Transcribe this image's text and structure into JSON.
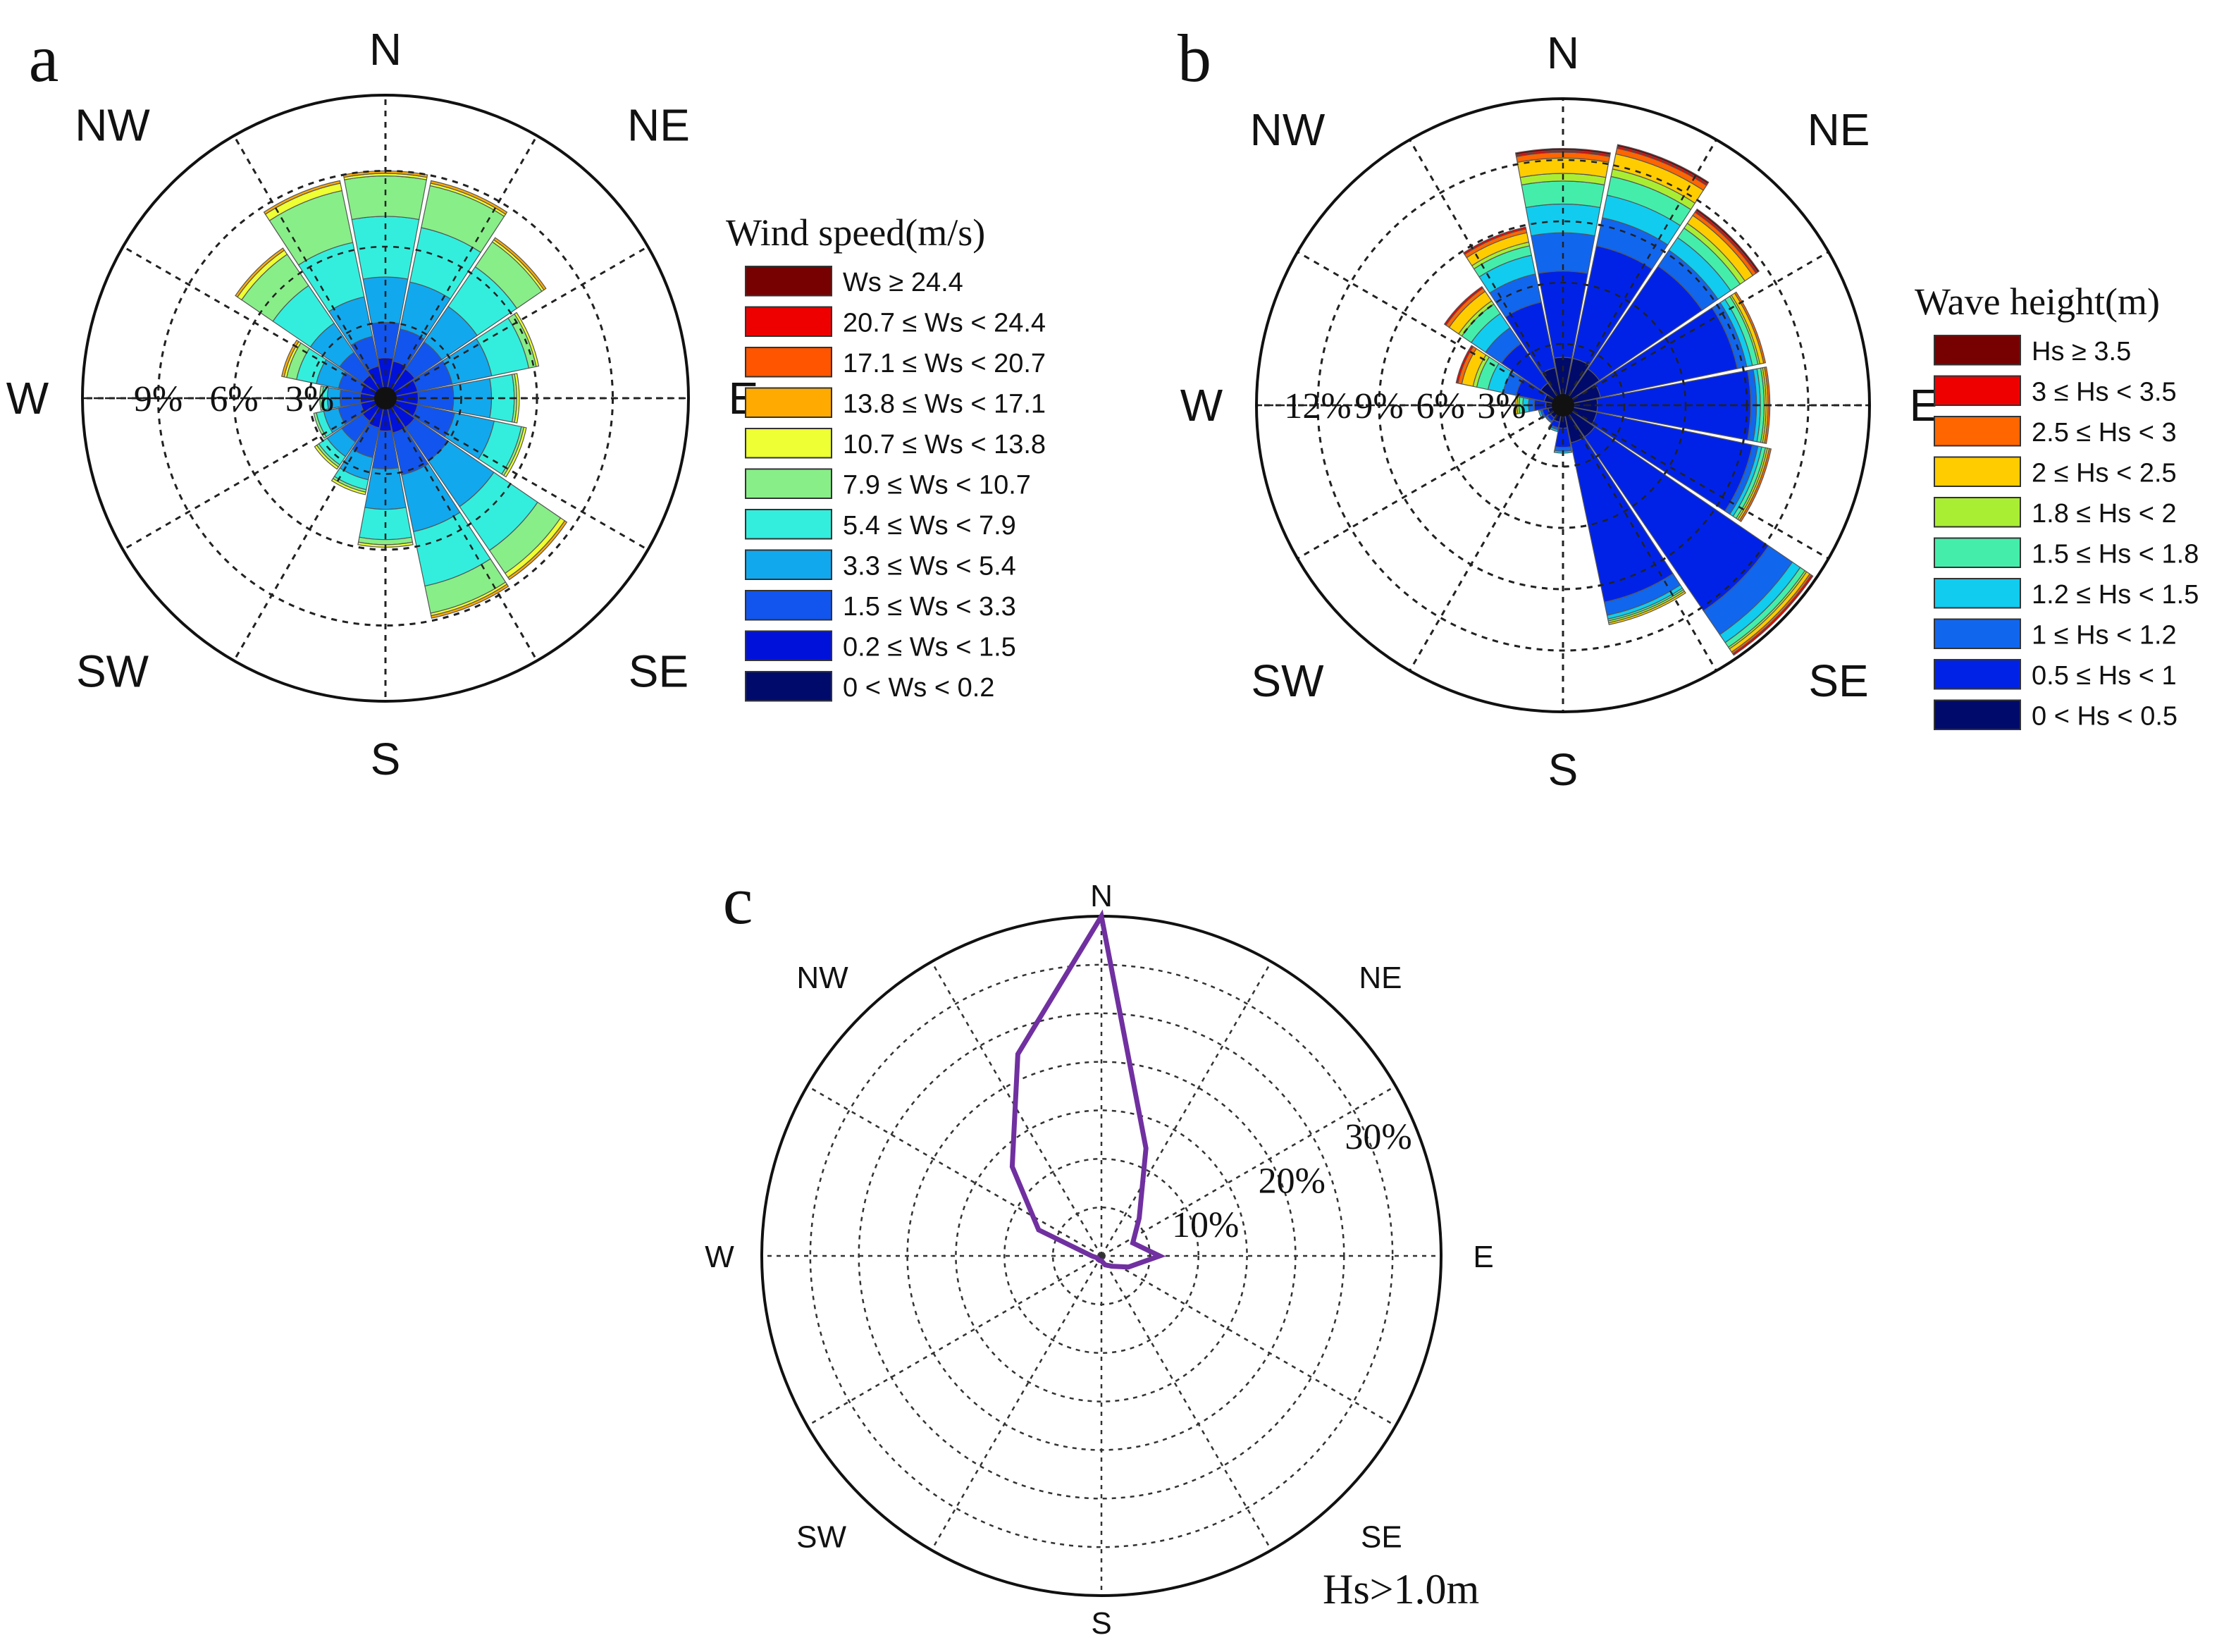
{
  "chart_data": [
    {
      "panel": "a",
      "type": "wind-rose",
      "legend_title": "Wind speed(m/s)",
      "legend_placement": "right",
      "compass": [
        "N",
        "NE",
        "E",
        "SE",
        "S",
        "SW",
        "W",
        "NW"
      ],
      "radial_ticks": [
        "3%",
        "6%",
        "9%"
      ],
      "radial_max": 12,
      "directions": [
        "N",
        "NNE",
        "NE",
        "ENE",
        "E",
        "ESE",
        "SE",
        "SSE",
        "S",
        "SSW",
        "SW",
        "WSW",
        "W",
        "WNW",
        "NW",
        "NNW"
      ],
      "bins": [
        {
          "label": "0 < Ws < 0.2",
          "color": "#000a6b"
        },
        {
          "label": "0.2 ≤ Ws < 1.5",
          "color": "#0011d9"
        },
        {
          "label": "1.5 ≤ Ws < 3.3",
          "color": "#1155ee"
        },
        {
          "label": "3.3 ≤ Ws < 5.4",
          "color": "#11a8ee"
        },
        {
          "label": "5.4 ≤ Ws < 7.9",
          "color": "#33eedd"
        },
        {
          "label": "7.9 ≤ Ws < 10.7",
          "color": "#88ee88"
        },
        {
          "label": "10.7 ≤ Ws < 13.8",
          "color": "#eeff33"
        },
        {
          "label": "13.8 ≤ Ws < 17.1",
          "color": "#ffaa00"
        },
        {
          "label": "17.1 ≤ Ws < 20.7",
          "color": "#ff5500"
        },
        {
          "label": "20.7 ≤ Ws < 24.4",
          "color": "#ee0000"
        },
        {
          "label": "Ws ≥ 24.4",
          "color": "#770000"
        }
      ],
      "frequencies": [
        [
          0.2,
          1.4,
          1.4,
          1.8,
          2.4,
          1.6,
          0.1,
          0.1,
          0,
          0,
          0
        ],
        [
          0.2,
          1.3,
          1.3,
          1.9,
          2.2,
          1.7,
          0.1,
          0.1,
          0,
          0,
          0
        ],
        [
          0.2,
          1.2,
          1.3,
          1.7,
          1.9,
          1.2,
          0.1,
          0.1,
          0,
          0,
          0
        ],
        [
          0.2,
          1.1,
          1.4,
          1.6,
          1.5,
          0.3,
          0.1,
          0,
          0,
          0,
          0
        ],
        [
          0.2,
          1.1,
          1.4,
          1.5,
          0.9,
          0.1,
          0.1,
          0,
          0,
          0,
          0
        ],
        [
          0.2,
          1.1,
          1.5,
          1.6,
          1.1,
          0.1,
          0.1,
          0,
          0,
          0,
          0
        ],
        [
          0.2,
          1.2,
          1.6,
          2.2,
          2.1,
          1.1,
          0.2,
          0.1,
          0,
          0,
          0
        ],
        [
          0.2,
          1.2,
          1.7,
          2.3,
          2.2,
          1.1,
          0.1,
          0.1,
          0,
          0,
          0
        ],
        [
          0.2,
          1.1,
          1.5,
          1.6,
          1.2,
          0.2,
          0.1,
          0,
          0,
          0,
          0
        ],
        [
          0.2,
          1.0,
          1.2,
          0.9,
          0.4,
          0.1,
          0.1,
          0,
          0,
          0,
          0
        ],
        [
          0.2,
          0.9,
          1.0,
          0.7,
          0.4,
          0.1,
          0.1,
          0,
          0,
          0,
          0
        ],
        [
          0.2,
          0.8,
          0.9,
          0.6,
          0.3,
          0.1,
          0,
          0,
          0,
          0,
          0
        ],
        [
          0.2,
          0.8,
          0.8,
          0.5,
          0.2,
          0.1,
          0,
          0,
          0,
          0,
          0
        ],
        [
          0.2,
          0.8,
          0.9,
          0.9,
          0.8,
          0.4,
          0.1,
          0.1,
          0,
          0,
          0
        ],
        [
          0.2,
          0.9,
          1.1,
          1.4,
          1.8,
          1.5,
          0.2,
          0.1,
          0,
          0,
          0
        ],
        [
          0.2,
          1.1,
          1.2,
          1.6,
          2.2,
          2.1,
          0.3,
          0.1,
          0,
          0,
          0
        ]
      ]
    },
    {
      "panel": "b",
      "type": "wave-rose",
      "legend_title": "Wave height(m)",
      "legend_placement": "right",
      "compass": [
        "N",
        "NE",
        "E",
        "SE",
        "S",
        "SW",
        "W",
        "NW"
      ],
      "radial_ticks": [
        "3%",
        "6%",
        "9%",
        "12%"
      ],
      "radial_max": 16,
      "directions": [
        "N",
        "NNE",
        "NE",
        "ENE",
        "E",
        "ESE",
        "SE",
        "SSE",
        "S",
        "SSW",
        "SW",
        "WSW",
        "W",
        "WNW",
        "NW",
        "NNW"
      ],
      "bins": [
        {
          "label": "0 < Hs < 0.5",
          "color": "#000a6b"
        },
        {
          "label": "0.5 ≤ Hs < 1",
          "color": "#0022e6"
        },
        {
          "label": "1 ≤ Hs < 1.2",
          "color": "#1166ee"
        },
        {
          "label": "1.2 ≤ Hs < 1.5",
          "color": "#11ccee"
        },
        {
          "label": "1.5 ≤ Hs < 1.8",
          "color": "#44eeaa"
        },
        {
          "label": "1.8 ≤ Hs < 2",
          "color": "#aaee33"
        },
        {
          "label": "2 ≤ Hs < 2.5",
          "color": "#ffcc00"
        },
        {
          "label": "2.5 ≤ Hs < 3",
          "color": "#ff6600"
        },
        {
          "label": "3 ≤ Hs < 3.5",
          "color": "#ee0000"
        },
        {
          "label": "Hs ≥ 3.5",
          "color": "#770000"
        }
      ],
      "frequencies": [
        [
          2.5,
          4.5,
          2.0,
          1.5,
          1.2,
          0.4,
          0.8,
          0.3,
          0.1,
          0.1
        ],
        [
          2.5,
          6.0,
          1.5,
          1.2,
          1.0,
          0.4,
          0.8,
          0.3,
          0.1,
          0.1
        ],
        [
          2.3,
          6.5,
          1.0,
          0.8,
          0.6,
          0.3,
          0.5,
          0.2,
          0.1,
          0.1
        ],
        [
          2.0,
          7.3,
          0.5,
          0.3,
          0.3,
          0.1,
          0.2,
          0.1,
          0,
          0
        ],
        [
          1.8,
          8.0,
          0.3,
          0.2,
          0.2,
          0.1,
          0.1,
          0.1,
          0,
          0
        ],
        [
          1.8,
          8.3,
          0.3,
          0.2,
          0.2,
          0.1,
          0.1,
          0.1,
          0,
          0
        ],
        [
          2.0,
          11.0,
          1.5,
          0.5,
          0.3,
          0.1,
          0.2,
          0.1,
          0.1,
          0
        ],
        [
          2.0,
          8.5,
          0.7,
          0.2,
          0.1,
          0.1,
          0.1,
          0,
          0,
          0
        ],
        [
          1.2,
          1.0,
          0.2,
          0.1,
          0,
          0,
          0,
          0,
          0,
          0
        ],
        [
          0.9,
          0.3,
          0.1,
          0.1,
          0,
          0,
          0,
          0,
          0,
          0
        ],
        [
          0.8,
          0.2,
          0.1,
          0,
          0,
          0,
          0,
          0,
          0,
          0
        ],
        [
          0.8,
          0.3,
          0.1,
          0.1,
          0,
          0,
          0,
          0,
          0,
          0
        ],
        [
          0.9,
          0.6,
          0.3,
          0.3,
          0.2,
          0.1,
          0.1,
          0,
          0,
          0
        ],
        [
          1.0,
          1.5,
          0.7,
          0.8,
          0.6,
          0.2,
          0.6,
          0.2,
          0.1,
          0
        ],
        [
          1.4,
          2.5,
          1.0,
          0.9,
          0.6,
          0.2,
          0.6,
          0.2,
          0.1,
          0
        ],
        [
          2.0,
          3.5,
          1.5,
          1.0,
          0.5,
          0.2,
          0.5,
          0.2,
          0.1,
          0
        ]
      ]
    },
    {
      "panel": "c",
      "type": "polar-line",
      "annotation": "Hs>1.0m",
      "line_color": "#7030a0",
      "compass": [
        "N",
        "NE",
        "E",
        "SE",
        "S",
        "SW",
        "W",
        "NW"
      ],
      "radial_ticks": [
        "10%",
        "20%",
        "30%"
      ],
      "radial_max": 35,
      "directions": [
        "N",
        "NNE",
        "NE",
        "ENE",
        "E",
        "ESE",
        "SE",
        "SSE",
        "S",
        "SSW",
        "SW",
        "WSW",
        "W",
        "WNW",
        "NW",
        "NNW"
      ],
      "values": [
        35.0,
        12.0,
        5.5,
        3.5,
        6.0,
        3.0,
        1.5,
        1.0,
        0.5,
        0.5,
        0.5,
        0.5,
        1.0,
        7.0,
        13.0,
        22.5
      ]
    }
  ]
}
